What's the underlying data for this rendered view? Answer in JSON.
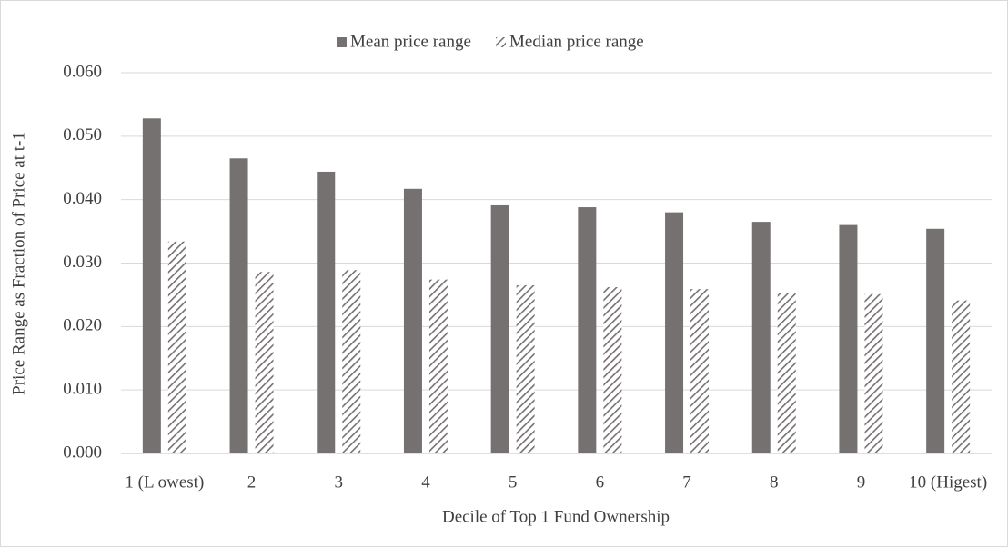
{
  "chart_data": {
    "type": "bar",
    "x_label": "Decile of Top 1 Fund Ownership",
    "y_label": "Price Range as Fraction of Price at t-1",
    "categories": [
      "1 (L owest)",
      "2",
      "3",
      "4",
      "5",
      "6",
      "7",
      "8",
      "9",
      "10 (Higest)"
    ],
    "series": [
      {
        "name": "Mean price range",
        "color": "#767171",
        "pattern": "solid",
        "values": [
          0.0528,
          0.0465,
          0.0444,
          0.0417,
          0.0391,
          0.0388,
          0.038,
          0.0365,
          0.036,
          0.0354
        ]
      },
      {
        "name": "Median price range",
        "color": "#767171",
        "pattern": "hatch",
        "values": [
          0.0334,
          0.0286,
          0.0289,
          0.0274,
          0.0265,
          0.0262,
          0.0259,
          0.0253,
          0.0251,
          0.0241
        ]
      }
    ],
    "ylim": [
      0,
      0.06
    ],
    "yticks": [
      {
        "value": 0,
        "label": "0.000"
      },
      {
        "value": 0.01,
        "label": "0.010"
      },
      {
        "value": 0.02,
        "label": "0.020"
      },
      {
        "value": 0.03,
        "label": "0.030"
      },
      {
        "value": 0.04,
        "label": "0.040"
      },
      {
        "value": 0.05,
        "label": "0.050"
      },
      {
        "value": 0.06,
        "label": "0.060"
      }
    ],
    "grid": true,
    "legend": "top"
  }
}
